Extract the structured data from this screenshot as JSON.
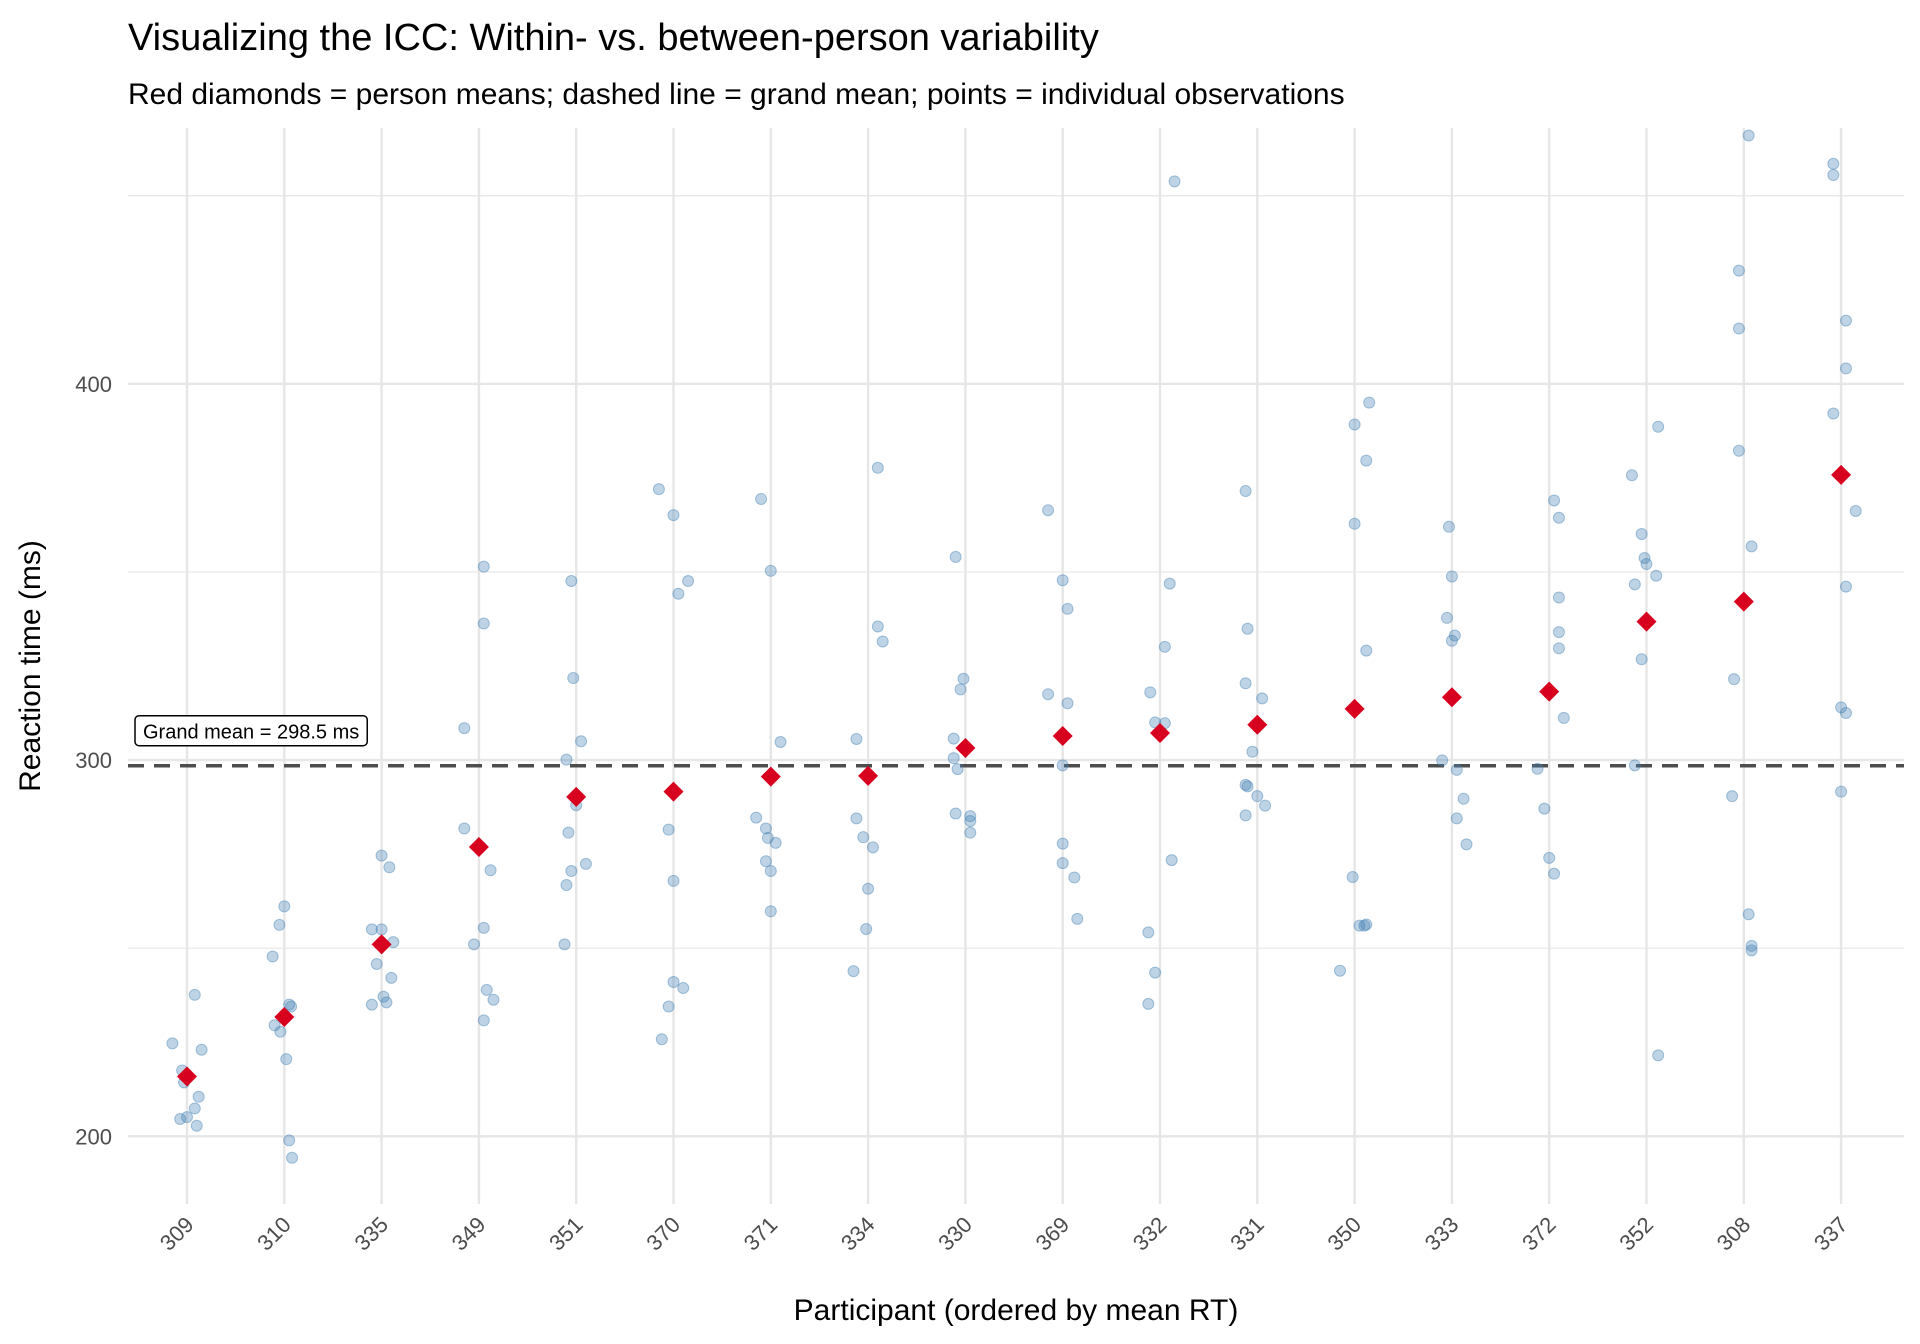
{
  "chart_data": {
    "type": "scatter",
    "title": "Visualizing the ICC: Within- vs. between-person variability",
    "subtitle": "Red diamonds = person means; dashed line = grand mean; points = individual observations",
    "xlabel": "Participant (ordered by mean RT)",
    "ylabel": "Reaction time (ms)",
    "ylim": [
      182,
      468
    ],
    "yticks": [
      200,
      300,
      400
    ],
    "grid": true,
    "legend": "none",
    "grand_mean": 298.5,
    "grand_mean_label": "Grand mean = 298.5 ms",
    "colors": {
      "observation": "#4682b4",
      "person_mean": "#d7001f",
      "grand_mean_line": "#4d4d4d",
      "grid": "#e6e6e6"
    },
    "categories": [
      "309",
      "310",
      "335",
      "349",
      "351",
      "370",
      "371",
      "334",
      "330",
      "369",
      "332",
      "331",
      "350",
      "333",
      "372",
      "352",
      "308",
      "337"
    ],
    "person_means": [
      215.9,
      231.7,
      251.0,
      276.9,
      290.2,
      291.6,
      295.6,
      295.8,
      303.2,
      306.4,
      307.2,
      309.4,
      313.6,
      316.7,
      318.2,
      336.8,
      342.1,
      375.8
    ],
    "observations": [
      {
        "participant": "309",
        "points": [
          [
            -0.15,
            224.7
          ],
          [
            -0.05,
            217.5
          ],
          [
            0.0,
            205.1
          ],
          [
            0.08,
            207.4
          ],
          [
            0.15,
            223.0
          ],
          [
            -0.07,
            204.6
          ],
          [
            0.1,
            202.8
          ],
          [
            0.08,
            237.6
          ],
          [
            -0.03,
            214.3
          ],
          [
            0.12,
            210.5
          ]
        ]
      },
      {
        "participant": "310",
        "points": [
          [
            -0.12,
            247.8
          ],
          [
            -0.05,
            256.2
          ],
          [
            0.0,
            261.1
          ],
          [
            0.05,
            235.0
          ],
          [
            0.07,
            234.5
          ],
          [
            -0.1,
            229.5
          ],
          [
            0.02,
            220.5
          ],
          [
            0.05,
            198.9
          ],
          [
            0.08,
            194.3
          ],
          [
            -0.04,
            227.8
          ]
        ]
      },
      {
        "participant": "335",
        "points": [
          [
            -0.1,
            255.0
          ],
          [
            0.0,
            274.6
          ],
          [
            0.08,
            271.5
          ],
          [
            0.12,
            251.6
          ],
          [
            -0.05,
            245.8
          ],
          [
            0.02,
            237.1
          ],
          [
            0.05,
            235.6
          ],
          [
            -0.1,
            235.0
          ],
          [
            0.1,
            242.1
          ],
          [
            0.0,
            255.0
          ]
        ]
      },
      {
        "participant": "349",
        "points": [
          [
            -0.15,
            281.8
          ],
          [
            -0.15,
            308.5
          ],
          [
            0.05,
            351.4
          ],
          [
            0.05,
            336.3
          ],
          [
            -0.05,
            251.0
          ],
          [
            0.05,
            255.4
          ],
          [
            0.12,
            270.7
          ],
          [
            0.08,
            238.9
          ],
          [
            0.15,
            236.3
          ],
          [
            0.05,
            230.8
          ]
        ]
      },
      {
        "participant": "351",
        "points": [
          [
            -0.1,
            300.1
          ],
          [
            -0.05,
            347.6
          ],
          [
            -0.03,
            321.8
          ],
          [
            0.05,
            305.0
          ],
          [
            0.1,
            272.4
          ],
          [
            -0.08,
            280.7
          ],
          [
            -0.05,
            270.5
          ],
          [
            -0.1,
            266.8
          ],
          [
            -0.12,
            251.0
          ],
          [
            0.0,
            288.0
          ]
        ]
      },
      {
        "participant": "370",
        "points": [
          [
            -0.15,
            372.0
          ],
          [
            0.0,
            365.1
          ],
          [
            0.15,
            347.6
          ],
          [
            0.05,
            344.2
          ],
          [
            -0.05,
            281.5
          ],
          [
            0.0,
            267.9
          ],
          [
            0.0,
            241.0
          ],
          [
            0.1,
            239.4
          ],
          [
            -0.05,
            234.5
          ],
          [
            -0.12,
            225.8
          ]
        ]
      },
      {
        "participant": "371",
        "points": [
          [
            -0.1,
            369.4
          ],
          [
            0.0,
            350.3
          ],
          [
            0.1,
            304.8
          ],
          [
            -0.15,
            284.7
          ],
          [
            -0.05,
            281.8
          ],
          [
            -0.03,
            279.3
          ],
          [
            0.05,
            278.0
          ],
          [
            -0.05,
            273.1
          ],
          [
            0.0,
            270.5
          ],
          [
            0.0,
            259.8
          ]
        ]
      },
      {
        "participant": "334",
        "points": [
          [
            0.1,
            377.7
          ],
          [
            0.1,
            335.5
          ],
          [
            0.15,
            331.5
          ],
          [
            -0.12,
            305.6
          ],
          [
            -0.12,
            284.5
          ],
          [
            -0.05,
            279.5
          ],
          [
            0.05,
            276.8
          ],
          [
            0.0,
            265.8
          ],
          [
            -0.02,
            255.1
          ],
          [
            -0.15,
            243.9
          ]
        ]
      },
      {
        "participant": "330",
        "points": [
          [
            -0.1,
            354.0
          ],
          [
            -0.02,
            321.6
          ],
          [
            -0.05,
            318.8
          ],
          [
            -0.12,
            305.7
          ],
          [
            -0.12,
            300.5
          ],
          [
            -0.08,
            297.6
          ],
          [
            -0.1,
            285.8
          ],
          [
            0.05,
            285.1
          ],
          [
            0.05,
            283.8
          ],
          [
            0.05,
            280.7
          ]
        ]
      },
      {
        "participant": "369",
        "points": [
          [
            -0.15,
            366.4
          ],
          [
            0.0,
            347.8
          ],
          [
            0.05,
            340.2
          ],
          [
            -0.15,
            317.5
          ],
          [
            0.05,
            315.1
          ],
          [
            0.0,
            298.6
          ],
          [
            0.0,
            277.8
          ],
          [
            0.0,
            272.6
          ],
          [
            0.12,
            268.8
          ],
          [
            0.15,
            257.8
          ]
        ]
      },
      {
        "participant": "332",
        "points": [
          [
            0.15,
            453.8
          ],
          [
            0.1,
            346.9
          ],
          [
            0.05,
            330.1
          ],
          [
            -0.1,
            318.0
          ],
          [
            -0.05,
            310.0
          ],
          [
            0.05,
            309.8
          ],
          [
            0.12,
            273.4
          ],
          [
            -0.12,
            254.2
          ],
          [
            -0.05,
            243.5
          ],
          [
            -0.12,
            235.2
          ]
        ]
      },
      {
        "participant": "331",
        "points": [
          [
            -0.12,
            371.5
          ],
          [
            -0.1,
            334.9
          ],
          [
            -0.12,
            320.4
          ],
          [
            0.05,
            316.4
          ],
          [
            -0.05,
            302.2
          ],
          [
            -0.12,
            293.4
          ],
          [
            -0.1,
            293.0
          ],
          [
            0.0,
            290.4
          ],
          [
            0.08,
            287.9
          ],
          [
            -0.12,
            285.3
          ]
        ]
      },
      {
        "participant": "350",
        "points": [
          [
            0.0,
            362.8
          ],
          [
            0.15,
            395.0
          ],
          [
            0.0,
            389.2
          ],
          [
            0.12,
            379.6
          ],
          [
            0.12,
            329.1
          ],
          [
            -0.02,
            268.9
          ],
          [
            0.05,
            256.0
          ],
          [
            0.12,
            256.3
          ],
          [
            0.1,
            256.0
          ],
          [
            -0.15,
            244.0
          ]
        ]
      },
      {
        "participant": "333",
        "points": [
          [
            -0.03,
            362.0
          ],
          [
            0.0,
            348.8
          ],
          [
            -0.05,
            337.8
          ],
          [
            0.0,
            331.7
          ],
          [
            0.03,
            333.1
          ],
          [
            -0.1,
            299.9
          ],
          [
            0.05,
            297.4
          ],
          [
            0.12,
            289.7
          ],
          [
            0.05,
            284.5
          ],
          [
            0.15,
            277.6
          ]
        ]
      },
      {
        "participant": "372",
        "points": [
          [
            0.05,
            369.0
          ],
          [
            0.1,
            364.4
          ],
          [
            0.1,
            343.2
          ],
          [
            0.1,
            334.0
          ],
          [
            0.1,
            329.7
          ],
          [
            0.15,
            311.2
          ],
          [
            -0.12,
            297.7
          ],
          [
            -0.05,
            287.1
          ],
          [
            0.0,
            274.0
          ],
          [
            0.05,
            269.8
          ]
        ]
      },
      {
        "participant": "352",
        "points": [
          [
            -0.15,
            375.7
          ],
          [
            -0.05,
            360.1
          ],
          [
            -0.02,
            353.7
          ],
          [
            0.0,
            352.1
          ],
          [
            0.1,
            349.0
          ],
          [
            -0.12,
            346.7
          ],
          [
            0.12,
            388.6
          ],
          [
            -0.05,
            326.8
          ],
          [
            -0.12,
            298.6
          ],
          [
            0.12,
            221.5
          ]
        ]
      },
      {
        "participant": "308",
        "points": [
          [
            0.05,
            466.0
          ],
          [
            -0.05,
            430.1
          ],
          [
            -0.05,
            414.7
          ],
          [
            -0.05,
            382.2
          ],
          [
            0.08,
            356.8
          ],
          [
            -0.1,
            321.5
          ],
          [
            -0.12,
            290.4
          ],
          [
            0.05,
            259.0
          ],
          [
            0.08,
            250.6
          ],
          [
            0.08,
            249.4
          ]
        ]
      },
      {
        "participant": "337",
        "points": [
          [
            -0.08,
            458.5
          ],
          [
            -0.08,
            455.5
          ],
          [
            0.05,
            416.8
          ],
          [
            0.05,
            404.1
          ],
          [
            -0.08,
            392.1
          ],
          [
            0.15,
            366.2
          ],
          [
            0.05,
            346.1
          ],
          [
            0.0,
            314.0
          ],
          [
            0.05,
            312.5
          ],
          [
            0.0,
            291.6
          ]
        ]
      }
    ]
  }
}
